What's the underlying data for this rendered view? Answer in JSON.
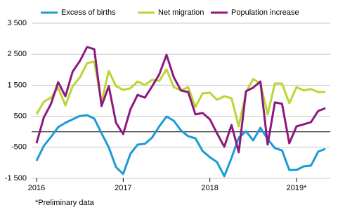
{
  "chart_data": {
    "type": "line",
    "footnote": "*Preliminary data",
    "categories": [
      "2016",
      null,
      null,
      null,
      null,
      null,
      null,
      null,
      null,
      null,
      null,
      null,
      "2017",
      null,
      null,
      null,
      null,
      null,
      null,
      null,
      null,
      null,
      null,
      null,
      "2018",
      null,
      null,
      null,
      null,
      null,
      null,
      null,
      null,
      null,
      null,
      null,
      "2019*",
      null,
      null,
      null,
      null
    ],
    "series": [
      {
        "name": "Excess of births",
        "color": "#1a9bd7",
        "values": [
          -935,
          -460,
          -165,
          150,
          290,
          400,
          510,
          535,
          425,
          -50,
          -500,
          -1140,
          -1360,
          -710,
          -415,
          -390,
          -190,
          175,
          490,
          355,
          40,
          -145,
          -210,
          -620,
          -820,
          -980,
          -1430,
          -845,
          -190,
          15,
          -280,
          130,
          -235,
          -530,
          -600,
          -1230,
          -1230,
          -1115,
          -1090,
          -640,
          -550
        ]
      },
      {
        "name": "Net migration",
        "color": "#bbd532",
        "values": [
          560,
          965,
          1100,
          1420,
          850,
          1470,
          1750,
          2210,
          2260,
          965,
          1960,
          1470,
          1350,
          1400,
          1620,
          1510,
          1670,
          1640,
          2010,
          1440,
          1330,
          1440,
          800,
          1240,
          1260,
          1030,
          1145,
          1080,
          175,
          1280,
          1700,
          1555,
          560,
          1555,
          1555,
          920,
          1440,
          1330,
          1375,
          1280,
          1280
        ]
      },
      {
        "name": "Population increase",
        "color": "#8c1a7e",
        "values": [
          -370,
          460,
          900,
          1600,
          1145,
          1940,
          2280,
          2730,
          2660,
          830,
          1470,
          290,
          -75,
          720,
          1190,
          1100,
          1460,
          1850,
          2480,
          1760,
          1330,
          1280,
          560,
          605,
          400,
          -50,
          -485,
          220,
          -660,
          1305,
          1420,
          1620,
          -415,
          945,
          900,
          -370,
          175,
          240,
          310,
          670,
          760
        ]
      }
    ],
    "ylim": [
      -1500,
      3500
    ],
    "yticks": [
      {
        "value": -1500,
        "label": "-1 500"
      },
      -500,
      500,
      {
        "value": 1500,
        "label": "1 500"
      },
      {
        "value": 2500,
        "label": "2 500"
      },
      {
        "value": 3500,
        "label": "3 500"
      }
    ],
    "grid": true,
    "legend": "top"
  }
}
